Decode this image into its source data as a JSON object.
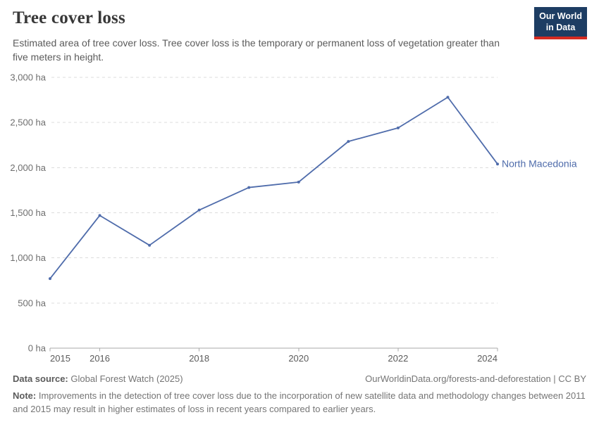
{
  "header": {
    "title": "Tree cover loss",
    "subtitle": "Estimated area of tree cover loss. Tree cover loss is the temporary or permanent loss of vegetation greater than five meters in height.",
    "logo_line1": "Our World",
    "logo_line2": "in Data"
  },
  "chart_data": {
    "type": "line",
    "title": "Tree cover loss",
    "unit": "ha",
    "x": [
      2015,
      2016,
      2017,
      2018,
      2019,
      2020,
      2021,
      2022,
      2023,
      2024
    ],
    "series": [
      {
        "name": "North Macedonia",
        "values": [
          770,
          1470,
          1140,
          1530,
          1780,
          1840,
          2290,
          2440,
          2780,
          2040
        ]
      }
    ],
    "ylim": [
      0,
      3000
    ],
    "ytick_interval": 500,
    "ytick_labels": [
      "0 ha",
      "500 ha",
      "1,000 ha",
      "1,500 ha",
      "2,000 ha",
      "2,500 ha",
      "3,000 ha"
    ],
    "xticks": [
      2015,
      2016,
      2018,
      2020,
      2022,
      2024
    ],
    "grid": "horizontal-dashed",
    "legend_position": "end-of-line-label"
  },
  "footer": {
    "source_label": "Data source:",
    "source_value": "Global Forest Watch (2025)",
    "link": "OurWorldinData.org/forests-and-deforestation | CC BY",
    "note_label": "Note:",
    "note_text": "Improvements in the detection of tree cover loss due to the incorporation of new satellite data and methodology changes between 2011 and 2015 may result in higher estimates of loss in recent years compared to earlier years."
  },
  "colors": {
    "line": "#4f6cab",
    "logo_bg": "#1d3d63",
    "logo_accent": "#d42b21",
    "grid": "#dcdcdc",
    "axis": "#a9a9a9",
    "text_muted": "#6e6e6e",
    "title": "#383838"
  }
}
